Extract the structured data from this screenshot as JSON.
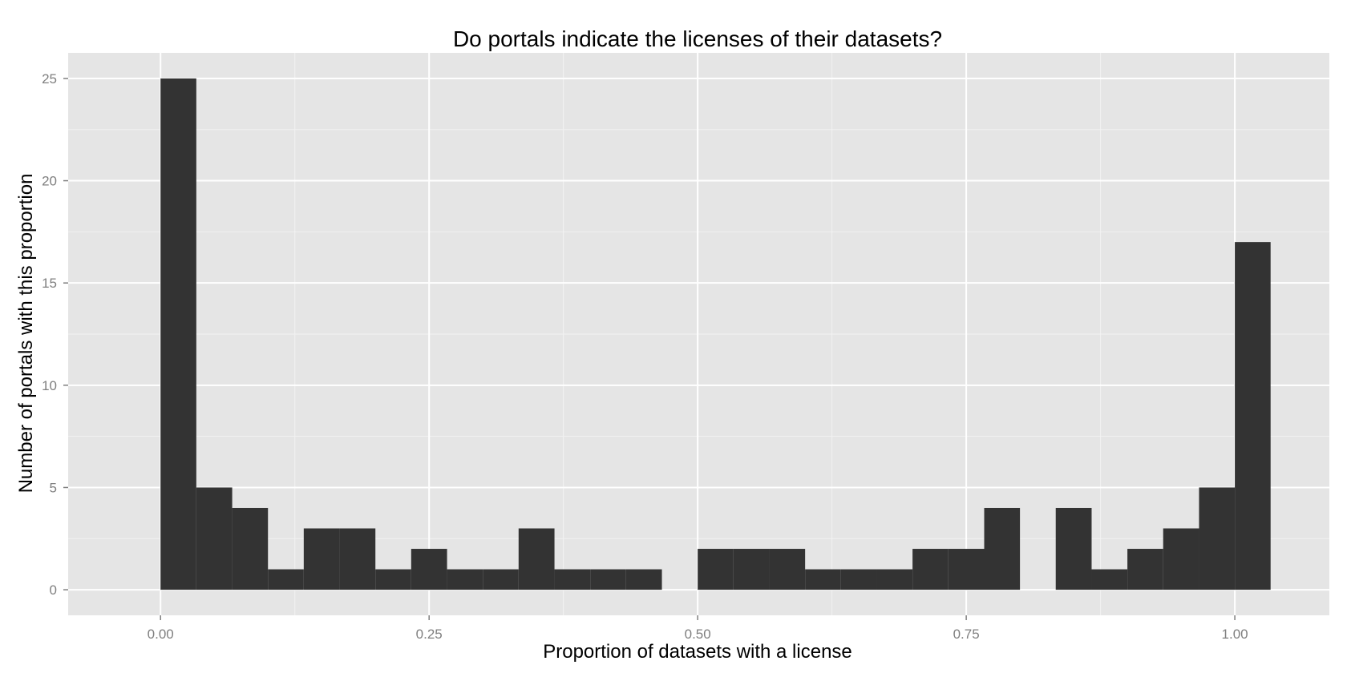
{
  "chart_data": {
    "type": "bar",
    "title": "Do portals indicate the licenses of their datasets?",
    "xlabel": "Proportion of datasets with a license",
    "ylabel": "Number of portals with this proportion",
    "xlim": [
      -0.086,
      1.088
    ],
    "ylim": [
      -1.25,
      26.25
    ],
    "x_ticks": [
      0.0,
      0.25,
      0.5,
      0.75,
      1.0
    ],
    "x_tick_labels": [
      "0.00",
      "0.25",
      "0.50",
      "0.75",
      "1.00"
    ],
    "y_ticks": [
      0,
      5,
      10,
      15,
      20,
      25
    ],
    "y_tick_labels": [
      "0",
      "5",
      "10",
      "15",
      "20",
      "25"
    ],
    "bin_width": 0.0333,
    "series": [
      {
        "bins": [
          {
            "x0": 0.0,
            "x1": 0.0333,
            "count": 25
          },
          {
            "x0": 0.0333,
            "x1": 0.0667,
            "count": 5
          },
          {
            "x0": 0.0667,
            "x1": 0.1,
            "count": 4
          },
          {
            "x0": 0.1,
            "x1": 0.1333,
            "count": 1
          },
          {
            "x0": 0.1333,
            "x1": 0.1667,
            "count": 3
          },
          {
            "x0": 0.1667,
            "x1": 0.2,
            "count": 3
          },
          {
            "x0": 0.2,
            "x1": 0.2333,
            "count": 1
          },
          {
            "x0": 0.2333,
            "x1": 0.2667,
            "count": 2
          },
          {
            "x0": 0.2667,
            "x1": 0.3,
            "count": 1
          },
          {
            "x0": 0.3,
            "x1": 0.3333,
            "count": 1
          },
          {
            "x0": 0.3333,
            "x1": 0.3667,
            "count": 3
          },
          {
            "x0": 0.3667,
            "x1": 0.4,
            "count": 1
          },
          {
            "x0": 0.4,
            "x1": 0.4333,
            "count": 1
          },
          {
            "x0": 0.4333,
            "x1": 0.4667,
            "count": 1
          },
          {
            "x0": 0.4667,
            "x1": 0.5,
            "count": 0
          },
          {
            "x0": 0.5,
            "x1": 0.5333,
            "count": 2
          },
          {
            "x0": 0.5333,
            "x1": 0.5667,
            "count": 2
          },
          {
            "x0": 0.5667,
            "x1": 0.6,
            "count": 2
          },
          {
            "x0": 0.6,
            "x1": 0.6333,
            "count": 1
          },
          {
            "x0": 0.6333,
            "x1": 0.6667,
            "count": 1
          },
          {
            "x0": 0.6667,
            "x1": 0.7,
            "count": 1
          },
          {
            "x0": 0.7,
            "x1": 0.7333,
            "count": 2
          },
          {
            "x0": 0.7333,
            "x1": 0.7667,
            "count": 2
          },
          {
            "x0": 0.7667,
            "x1": 0.8,
            "count": 4
          },
          {
            "x0": 0.8,
            "x1": 0.8333,
            "count": 0
          },
          {
            "x0": 0.8333,
            "x1": 0.8667,
            "count": 4
          },
          {
            "x0": 0.8667,
            "x1": 0.9,
            "count": 1
          },
          {
            "x0": 0.9,
            "x1": 0.9333,
            "count": 2
          },
          {
            "x0": 0.9333,
            "x1": 0.9667,
            "count": 3
          },
          {
            "x0": 0.9667,
            "x1": 1.0,
            "count": 5
          },
          {
            "x0": 1.0,
            "x1": 1.0333,
            "count": 17
          }
        ]
      }
    ],
    "grid": true,
    "legend": "none"
  },
  "colors": {
    "panel_background": "#e5e5e5",
    "grid_major": "#ffffff",
    "grid_minor": "#f2f2f2",
    "bar_fill": "#333333",
    "tick_label": "#7f7f7f",
    "text": "#000000"
  }
}
